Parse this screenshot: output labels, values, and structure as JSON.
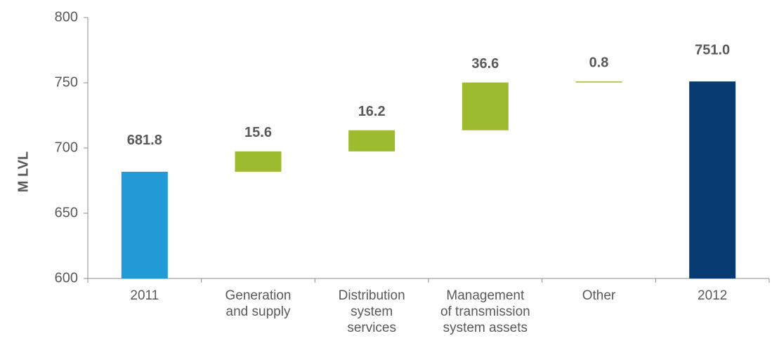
{
  "chart_data": {
    "type": "waterfall",
    "ylabel": "M LVL",
    "categories": [
      [
        "2011"
      ],
      [
        "Generation",
        "and supply"
      ],
      [
        "Distribution",
        "system",
        "services"
      ],
      [
        "Management",
        "of transmission",
        "system assets"
      ],
      [
        "Other"
      ],
      [
        "2012"
      ]
    ],
    "values": [
      681.8,
      15.6,
      16.2,
      36.6,
      0.8,
      751
    ],
    "value_labels": [
      "681.8",
      "15.6",
      "16.2",
      "36.6",
      "0.8",
      "751.0"
    ],
    "kinds": [
      "total",
      "increase",
      "increase",
      "increase",
      "increase",
      "total"
    ],
    "colors": [
      "#219ad6",
      "#9cbb2e",
      "#9cbb2e",
      "#9cbb2e",
      "#9cbb2e",
      "#063a70"
    ],
    "ylim": [
      600,
      800
    ],
    "yticks": [
      600,
      650,
      700,
      750,
      800
    ]
  }
}
